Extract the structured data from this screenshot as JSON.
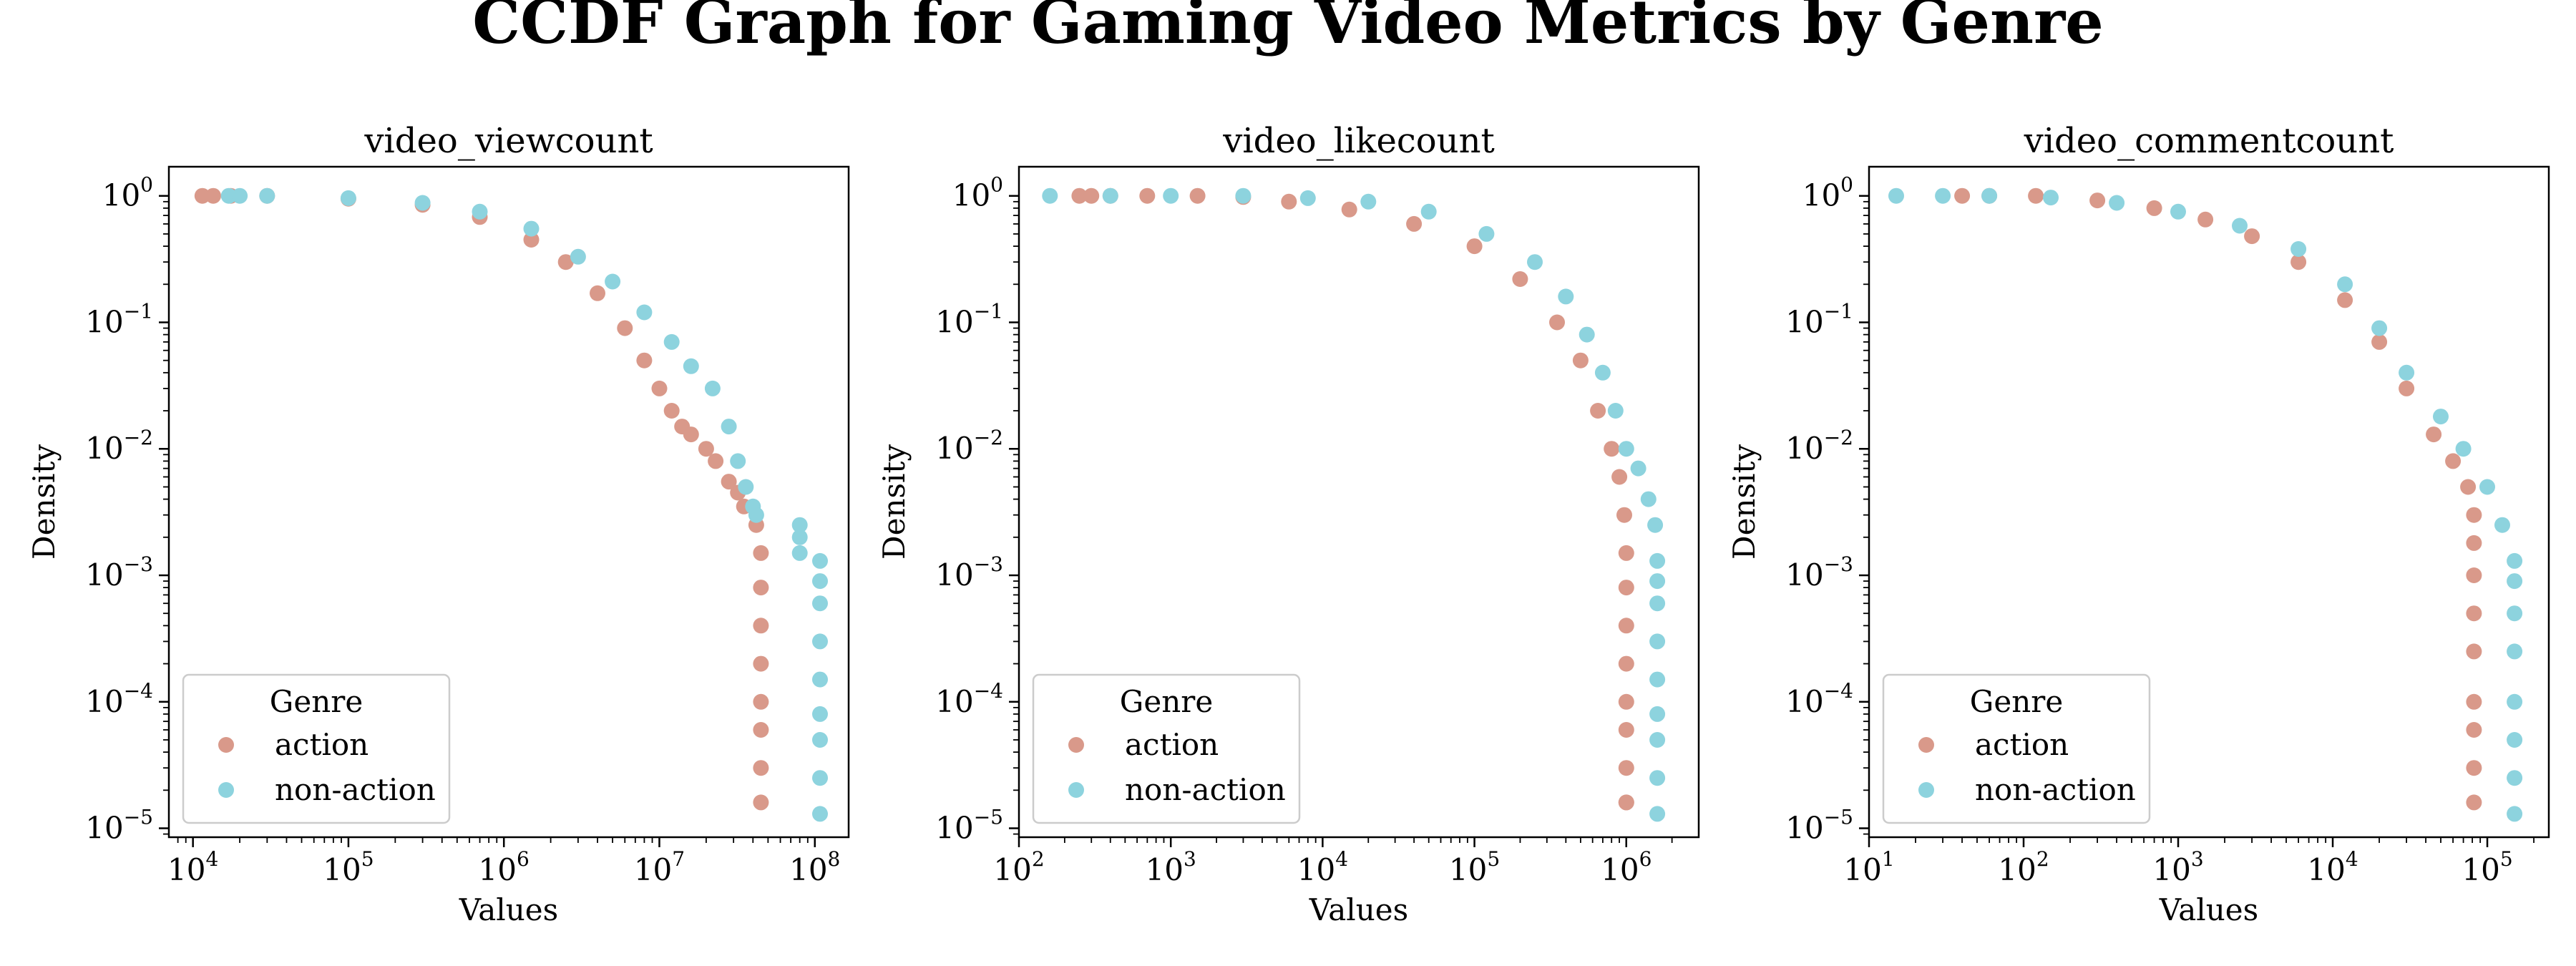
{
  "figure_title": "CCDF Graph for Gaming Video Metrics by Genre",
  "colors": {
    "action": "#d9998a",
    "non-action": "#8dd3de"
  },
  "chart_data": [
    {
      "type": "scatter",
      "title": "video_viewcount",
      "xlabel": "Values",
      "ylabel": "Density",
      "xscale": "log",
      "yscale": "log",
      "xlim": [
        7000,
        165000000
      ],
      "ylim": [
        8.5e-06,
        1.7
      ],
      "xticks": [
        {
          "base": "10",
          "exp": "4"
        },
        {
          "base": "10",
          "exp": "5"
        },
        {
          "base": "10",
          "exp": "6"
        },
        {
          "base": "10",
          "exp": "7"
        },
        {
          "base": "10",
          "exp": "8"
        }
      ],
      "yticks": [
        {
          "base": "10",
          "exp": "0"
        },
        {
          "base": "10",
          "exp": "−1"
        },
        {
          "base": "10",
          "exp": "−2"
        },
        {
          "base": "10",
          "exp": "−3"
        },
        {
          "base": "10",
          "exp": "−4"
        },
        {
          "base": "10",
          "exp": "−5"
        }
      ],
      "legend": {
        "title": "Genre",
        "position": "lower-left"
      },
      "series": [
        {
          "name": "action",
          "color": "#d9998a",
          "x": [
            11500,
            13500,
            17500,
            30000,
            100000,
            300000,
            700000,
            1500000,
            2500000,
            4000000,
            6000000,
            8000000,
            10000000,
            12000000,
            14000000,
            16000000,
            20000000,
            23000000,
            28000000,
            32000000,
            35000000,
            42000000,
            45000000,
            45000000,
            45000000,
            45000000,
            45000000,
            45000000,
            45000000,
            45000000
          ],
          "y": [
            1.0,
            1.0,
            1.0,
            1.0,
            0.95,
            0.85,
            0.68,
            0.45,
            0.3,
            0.17,
            0.09,
            0.05,
            0.03,
            0.02,
            0.015,
            0.013,
            0.01,
            0.008,
            0.0055,
            0.0045,
            0.0035,
            0.0025,
            0.0015,
            0.0008,
            0.0004,
            0.0002,
            0.0001,
            6e-05,
            3e-05,
            1.6e-05
          ]
        },
        {
          "name": "non-action",
          "color": "#8dd3de",
          "x": [
            17000,
            20000,
            30000,
            100000,
            300000,
            700000,
            1500000,
            3000000,
            5000000,
            8000000,
            12000000,
            16000000,
            22000000,
            28000000,
            32000000,
            36000000,
            40000000,
            42000000,
            80000000,
            80000000,
            80000000,
            108000000,
            108000000,
            108000000,
            108000000,
            108000000,
            108000000,
            108000000,
            108000000,
            108000000
          ],
          "y": [
            1.0,
            1.0,
            1.0,
            0.96,
            0.88,
            0.75,
            0.55,
            0.33,
            0.21,
            0.12,
            0.07,
            0.045,
            0.03,
            0.015,
            0.008,
            0.005,
            0.0035,
            0.003,
            0.0025,
            0.002,
            0.0015,
            0.0013,
            0.0009,
            0.0006,
            0.0003,
            0.00015,
            8e-05,
            5e-05,
            2.5e-05,
            1.3e-05
          ]
        }
      ]
    },
    {
      "type": "scatter",
      "title": "video_likecount",
      "xlabel": "Values",
      "ylabel": "Density",
      "xscale": "log",
      "yscale": "log",
      "xlim": [
        100,
        3000000
      ],
      "ylim": [
        8.5e-06,
        1.7
      ],
      "xticks": [
        {
          "base": "10",
          "exp": "2"
        },
        {
          "base": "10",
          "exp": "3"
        },
        {
          "base": "10",
          "exp": "4"
        },
        {
          "base": "10",
          "exp": "5"
        },
        {
          "base": "10",
          "exp": "6"
        }
      ],
      "yticks": [
        {
          "base": "10",
          "exp": "0"
        },
        {
          "base": "10",
          "exp": "−1"
        },
        {
          "base": "10",
          "exp": "−2"
        },
        {
          "base": "10",
          "exp": "−3"
        },
        {
          "base": "10",
          "exp": "−4"
        },
        {
          "base": "10",
          "exp": "−5"
        }
      ],
      "legend": {
        "title": "Genre",
        "position": "lower-left"
      },
      "series": [
        {
          "name": "action",
          "color": "#d9998a",
          "x": [
            250,
            300,
            400,
            700,
            1500,
            3000,
            6000,
            15000,
            40000,
            100000,
            200000,
            350000,
            500000,
            650000,
            800000,
            900000,
            970000,
            1000000,
            1000000,
            1000000,
            1000000,
            1000000,
            1000000,
            1000000,
            1000000,
            1000000
          ],
          "y": [
            1.0,
            1.0,
            1.0,
            1.0,
            1.0,
            0.98,
            0.9,
            0.78,
            0.6,
            0.4,
            0.22,
            0.1,
            0.05,
            0.02,
            0.01,
            0.006,
            0.003,
            0.0015,
            0.0008,
            0.0004,
            0.0002,
            0.0001,
            6e-05,
            3e-05,
            1.6e-05,
            1.6e-05
          ]
        },
        {
          "name": "non-action",
          "color": "#8dd3de",
          "x": [
            160,
            400,
            1000,
            3000,
            8000,
            20000,
            50000,
            120000,
            250000,
            400000,
            550000,
            700000,
            850000,
            1000000,
            1200000,
            1400000,
            1550000,
            1600000,
            1600000,
            1600000,
            1600000,
            1600000,
            1600000,
            1600000,
            1600000,
            1600000
          ],
          "y": [
            1.0,
            1.0,
            1.0,
            1.0,
            0.96,
            0.9,
            0.75,
            0.5,
            0.3,
            0.16,
            0.08,
            0.04,
            0.02,
            0.01,
            0.007,
            0.004,
            0.0025,
            0.0013,
            0.0009,
            0.0006,
            0.0003,
            0.00015,
            8e-05,
            5e-05,
            2.5e-05,
            1.3e-05
          ]
        }
      ]
    },
    {
      "type": "scatter",
      "title": "video_commentcount",
      "xlabel": "Values",
      "ylabel": "Density",
      "xscale": "log",
      "yscale": "log",
      "xlim": [
        10,
        250000
      ],
      "ylim": [
        8.5e-06,
        1.7
      ],
      "xticks": [
        {
          "base": "10",
          "exp": "1"
        },
        {
          "base": "10",
          "exp": "2"
        },
        {
          "base": "10",
          "exp": "3"
        },
        {
          "base": "10",
          "exp": "4"
        },
        {
          "base": "10",
          "exp": "5"
        }
      ],
      "yticks": [
        {
          "base": "10",
          "exp": "0"
        },
        {
          "base": "10",
          "exp": "−1"
        },
        {
          "base": "10",
          "exp": "−2"
        },
        {
          "base": "10",
          "exp": "−3"
        },
        {
          "base": "10",
          "exp": "−4"
        },
        {
          "base": "10",
          "exp": "−5"
        }
      ],
      "legend": {
        "title": "Genre",
        "position": "lower-left"
      },
      "series": [
        {
          "name": "action",
          "color": "#d9998a",
          "x": [
            40,
            60,
            120,
            300,
            700,
            1500,
            3000,
            6000,
            12000,
            20000,
            30000,
            45000,
            60000,
            75000,
            82000,
            82000,
            82000,
            82000,
            82000,
            82000,
            82000,
            82000,
            82000
          ],
          "y": [
            1.0,
            1.0,
            1.0,
            0.92,
            0.8,
            0.65,
            0.48,
            0.3,
            0.15,
            0.07,
            0.03,
            0.013,
            0.008,
            0.005,
            0.003,
            0.0018,
            0.001,
            0.0005,
            0.00025,
            0.0001,
            6e-05,
            3e-05,
            1.6e-05
          ]
        },
        {
          "name": "non-action",
          "color": "#8dd3de",
          "x": [
            15,
            30,
            60,
            150,
            400,
            1000,
            2500,
            6000,
            12000,
            20000,
            30000,
            50000,
            70000,
            100000,
            125000,
            150000,
            150000,
            150000,
            150000,
            150000,
            150000,
            150000,
            150000
          ],
          "y": [
            1.0,
            1.0,
            1.0,
            0.97,
            0.88,
            0.75,
            0.58,
            0.38,
            0.2,
            0.09,
            0.04,
            0.018,
            0.01,
            0.005,
            0.0025,
            0.0013,
            0.0009,
            0.0005,
            0.00025,
            0.0001,
            5e-05,
            2.5e-05,
            1.3e-05
          ]
        }
      ]
    }
  ]
}
